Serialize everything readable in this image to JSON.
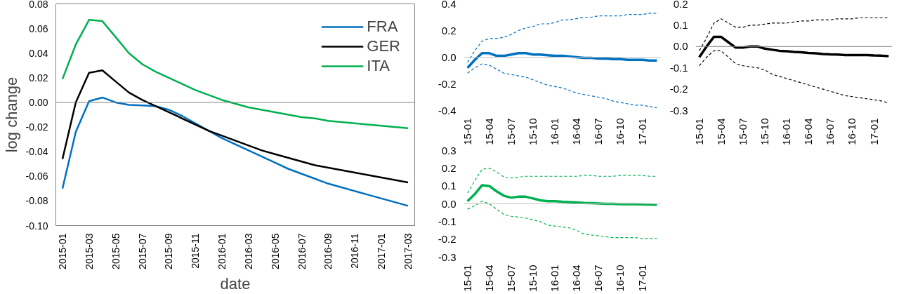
{
  "chart_data": [
    {
      "type": "line",
      "xlabel": "date",
      "ylabel": "log change",
      "categories": [
        "2015-01",
        null,
        "2015-03",
        null,
        "2015-05",
        null,
        "2015-07",
        null,
        "2015-09",
        null,
        "2015-11",
        null,
        "2016-01",
        null,
        "2016-03",
        null,
        "2016-05",
        null,
        "2016-07",
        null,
        "2016-09",
        null,
        "2016-11",
        null,
        "2017-01",
        null,
        "2017-03"
      ],
      "series": [
        {
          "name": "FRA",
          "color": "#0070c0",
          "line_style": "solid",
          "values": [
            -0.07,
            -0.024,
            0.001,
            0.004,
            0.0,
            -0.002,
            -0.0025,
            -0.003,
            -0.006,
            -0.011,
            -0.017,
            -0.023,
            -0.029,
            -0.034,
            -0.039,
            -0.044,
            -0.049,
            -0.054,
            -0.058,
            -0.062,
            -0.066,
            -0.069,
            -0.072,
            -0.075,
            -0.078,
            -0.081,
            -0.084
          ]
        },
        {
          "name": "GER",
          "color": "#000000",
          "line_style": "solid",
          "values": [
            -0.046,
            0.0,
            0.024,
            0.026,
            0.017,
            0.008,
            0.002,
            -0.003,
            -0.008,
            -0.013,
            -0.018,
            -0.023,
            -0.027,
            -0.031,
            -0.035,
            -0.039,
            -0.042,
            -0.045,
            -0.048,
            -0.051,
            -0.053,
            -0.055,
            -0.057,
            -0.059,
            -0.061,
            -0.063,
            -0.065
          ]
        },
        {
          "name": "ITA",
          "color": "#00b050",
          "line_style": "solid",
          "values": [
            0.019,
            0.047,
            0.067,
            0.066,
            0.053,
            0.04,
            0.031,
            0.025,
            0.02,
            0.015,
            0.01,
            0.006,
            0.002,
            -0.001,
            -0.004,
            -0.006,
            -0.008,
            -0.01,
            -0.012,
            -0.013,
            -0.015,
            -0.016,
            -0.017,
            -0.018,
            -0.019,
            -0.02,
            -0.021
          ]
        }
      ],
      "ylim": [
        -0.1,
        0.08
      ],
      "yticks": [
        {
          "value": -0.1,
          "label": "-0.10"
        },
        {
          "value": -0.08,
          "label": "-0.08"
        },
        {
          "value": -0.06,
          "label": "-0.06"
        },
        {
          "value": -0.04,
          "label": "-0.04"
        },
        {
          "value": -0.02,
          "label": "-0.02"
        },
        {
          "value": 0.0,
          "label": "0.00"
        },
        {
          "value": 0.02,
          "label": "0.02"
        },
        {
          "value": 0.04,
          "label": "0.04"
        },
        {
          "value": 0.06,
          "label": "0.06"
        },
        {
          "value": 0.08,
          "label": "0.08"
        }
      ],
      "ref_lines": [
        {
          "axis": "y",
          "value": 0,
          "color": "#808080"
        }
      ],
      "grid": false,
      "legend": "top right"
    },
    {
      "type": "line",
      "categories": [
        "15-01",
        null,
        null,
        "15-04",
        null,
        null,
        "15-07",
        null,
        null,
        "15-10",
        null,
        null,
        "16-01",
        null,
        null,
        "16-04",
        null,
        null,
        "16-07",
        null,
        null,
        "16-10",
        null,
        null,
        "17-01",
        null,
        null
      ],
      "series": [
        {
          "color": "#0070c0",
          "line_style": "dashed",
          "values": [
            -0.04,
            0.05,
            0.12,
            0.14,
            0.14,
            0.15,
            0.17,
            0.2,
            0.22,
            0.23,
            0.25,
            0.25,
            0.26,
            0.28,
            0.28,
            0.29,
            0.3,
            0.3,
            0.31,
            0.31,
            0.31,
            0.31,
            0.32,
            0.32,
            0.32,
            0.33,
            0.33
          ]
        },
        {
          "color": "#0070c0",
          "line_style": "solid",
          "values": [
            -0.08,
            -0.02,
            0.03,
            0.03,
            0.01,
            0.01,
            0.02,
            0.03,
            0.03,
            0.02,
            0.02,
            0.015,
            0.01,
            0.01,
            0.005,
            0.0,
            -0.005,
            -0.005,
            -0.01,
            -0.01,
            -0.015,
            -0.015,
            -0.02,
            -0.02,
            -0.02,
            -0.025,
            -0.025
          ]
        },
        {
          "color": "#0070c0",
          "line_style": "dashed",
          "values": [
            -0.12,
            -0.08,
            -0.05,
            -0.06,
            -0.09,
            -0.12,
            -0.13,
            -0.14,
            -0.15,
            -0.17,
            -0.19,
            -0.21,
            -0.22,
            -0.23,
            -0.25,
            -0.27,
            -0.28,
            -0.29,
            -0.3,
            -0.31,
            -0.33,
            -0.34,
            -0.35,
            -0.36,
            -0.36,
            -0.37,
            -0.38
          ]
        }
      ],
      "ylim": [
        -0.4,
        0.4
      ],
      "yticks": [
        {
          "value": -0.4,
          "label": "-0.4"
        },
        {
          "value": -0.2,
          "label": "-0.2"
        },
        {
          "value": 0.0,
          "label": "0.0"
        },
        {
          "value": 0.2,
          "label": "0.2"
        },
        {
          "value": 0.4,
          "label": "0.4"
        }
      ],
      "ref_lines": [
        {
          "axis": "y",
          "value": 0,
          "color": "#bfbfbf"
        }
      ],
      "grid": false
    },
    {
      "type": "line",
      "categories": [
        "15-01",
        null,
        null,
        "15-04",
        null,
        null,
        "15-07",
        null,
        null,
        "15-10",
        null,
        null,
        "16-01",
        null,
        null,
        "16-04",
        null,
        null,
        "16-07",
        null,
        null,
        "16-10",
        null,
        null,
        "17-01",
        null,
        null
      ],
      "series": [
        {
          "color": "#000000",
          "line_style": "dashed",
          "values": [
            -0.02,
            0.04,
            0.11,
            0.13,
            0.11,
            0.09,
            0.09,
            0.1,
            0.1,
            0.105,
            0.11,
            0.11,
            0.11,
            0.115,
            0.12,
            0.12,
            0.125,
            0.125,
            0.125,
            0.13,
            0.13,
            0.13,
            0.135,
            0.135,
            0.135,
            0.135,
            0.135
          ]
        },
        {
          "color": "#000000",
          "line_style": "solid",
          "values": [
            -0.05,
            0.0,
            0.045,
            0.045,
            0.02,
            -0.005,
            -0.005,
            0.0,
            0.0,
            -0.01,
            -0.015,
            -0.02,
            -0.022,
            -0.025,
            -0.027,
            -0.03,
            -0.032,
            -0.035,
            -0.037,
            -0.038,
            -0.04,
            -0.04,
            -0.04,
            -0.04,
            -0.042,
            -0.043,
            -0.045
          ]
        },
        {
          "color": "#000000",
          "line_style": "dashed",
          "values": [
            -0.09,
            -0.05,
            -0.02,
            -0.02,
            -0.05,
            -0.08,
            -0.09,
            -0.095,
            -0.1,
            -0.11,
            -0.13,
            -0.14,
            -0.15,
            -0.16,
            -0.17,
            -0.18,
            -0.19,
            -0.2,
            -0.21,
            -0.22,
            -0.23,
            -0.235,
            -0.24,
            -0.245,
            -0.25,
            -0.255,
            -0.265
          ]
        }
      ],
      "ylim": [
        -0.3,
        0.2
      ],
      "yticks": [
        {
          "value": -0.3,
          "label": "-0.3"
        },
        {
          "value": -0.2,
          "label": "-0.2"
        },
        {
          "value": -0.1,
          "label": "-0.1"
        },
        {
          "value": 0.0,
          "label": "0.0"
        },
        {
          "value": 0.1,
          "label": "0.1"
        },
        {
          "value": 0.2,
          "label": "0.2"
        }
      ],
      "ref_lines": [
        {
          "axis": "y",
          "value": 0,
          "color": "#808080"
        }
      ],
      "grid": false
    },
    {
      "type": "line",
      "categories": [
        "15-01",
        null,
        null,
        "15-04",
        null,
        null,
        "15-07",
        null,
        null,
        "15-10",
        null,
        null,
        "16-01",
        null,
        null,
        "16-04",
        null,
        null,
        "16-07",
        null,
        null,
        "16-10",
        null,
        null,
        "17-01",
        null,
        null
      ],
      "series": [
        {
          "color": "#00b050",
          "line_style": "dashed",
          "values": [
            0.06,
            0.13,
            0.195,
            0.2,
            0.18,
            0.15,
            0.145,
            0.15,
            0.155,
            0.155,
            0.155,
            0.155,
            0.155,
            0.155,
            0.155,
            0.155,
            0.16,
            0.16,
            0.155,
            0.155,
            0.155,
            0.16,
            0.16,
            0.16,
            0.16,
            0.155,
            0.155
          ]
        },
        {
          "color": "#00b050",
          "line_style": "solid",
          "values": [
            0.015,
            0.055,
            0.105,
            0.1,
            0.07,
            0.045,
            0.035,
            0.04,
            0.04,
            0.03,
            0.02,
            0.015,
            0.015,
            0.012,
            0.01,
            0.008,
            0.005,
            0.004,
            0.002,
            0.0,
            0.0,
            -0.002,
            -0.002,
            -0.002,
            -0.003,
            -0.004,
            -0.005
          ]
        },
        {
          "color": "#00b050",
          "line_style": "dashed",
          "values": [
            -0.03,
            -0.01,
            0.015,
            0.0,
            -0.03,
            -0.06,
            -0.07,
            -0.075,
            -0.08,
            -0.09,
            -0.1,
            -0.12,
            -0.125,
            -0.13,
            -0.135,
            -0.15,
            -0.17,
            -0.175,
            -0.18,
            -0.185,
            -0.19,
            -0.19,
            -0.19,
            -0.19,
            -0.195,
            -0.195,
            -0.195
          ]
        }
      ],
      "ylim": [
        -0.3,
        0.3
      ],
      "yticks": [
        {
          "value": -0.3,
          "label": "-0.3"
        },
        {
          "value": -0.2,
          "label": "-0.2"
        },
        {
          "value": -0.1,
          "label": "-0.1"
        },
        {
          "value": 0.0,
          "label": "0.0"
        },
        {
          "value": 0.1,
          "label": "0.1"
        },
        {
          "value": 0.2,
          "label": "0.2"
        },
        {
          "value": 0.3,
          "label": "0.3"
        }
      ],
      "ref_lines": [
        {
          "axis": "y",
          "value": 0,
          "color": "#bfbfbf"
        }
      ],
      "grid": false
    }
  ]
}
